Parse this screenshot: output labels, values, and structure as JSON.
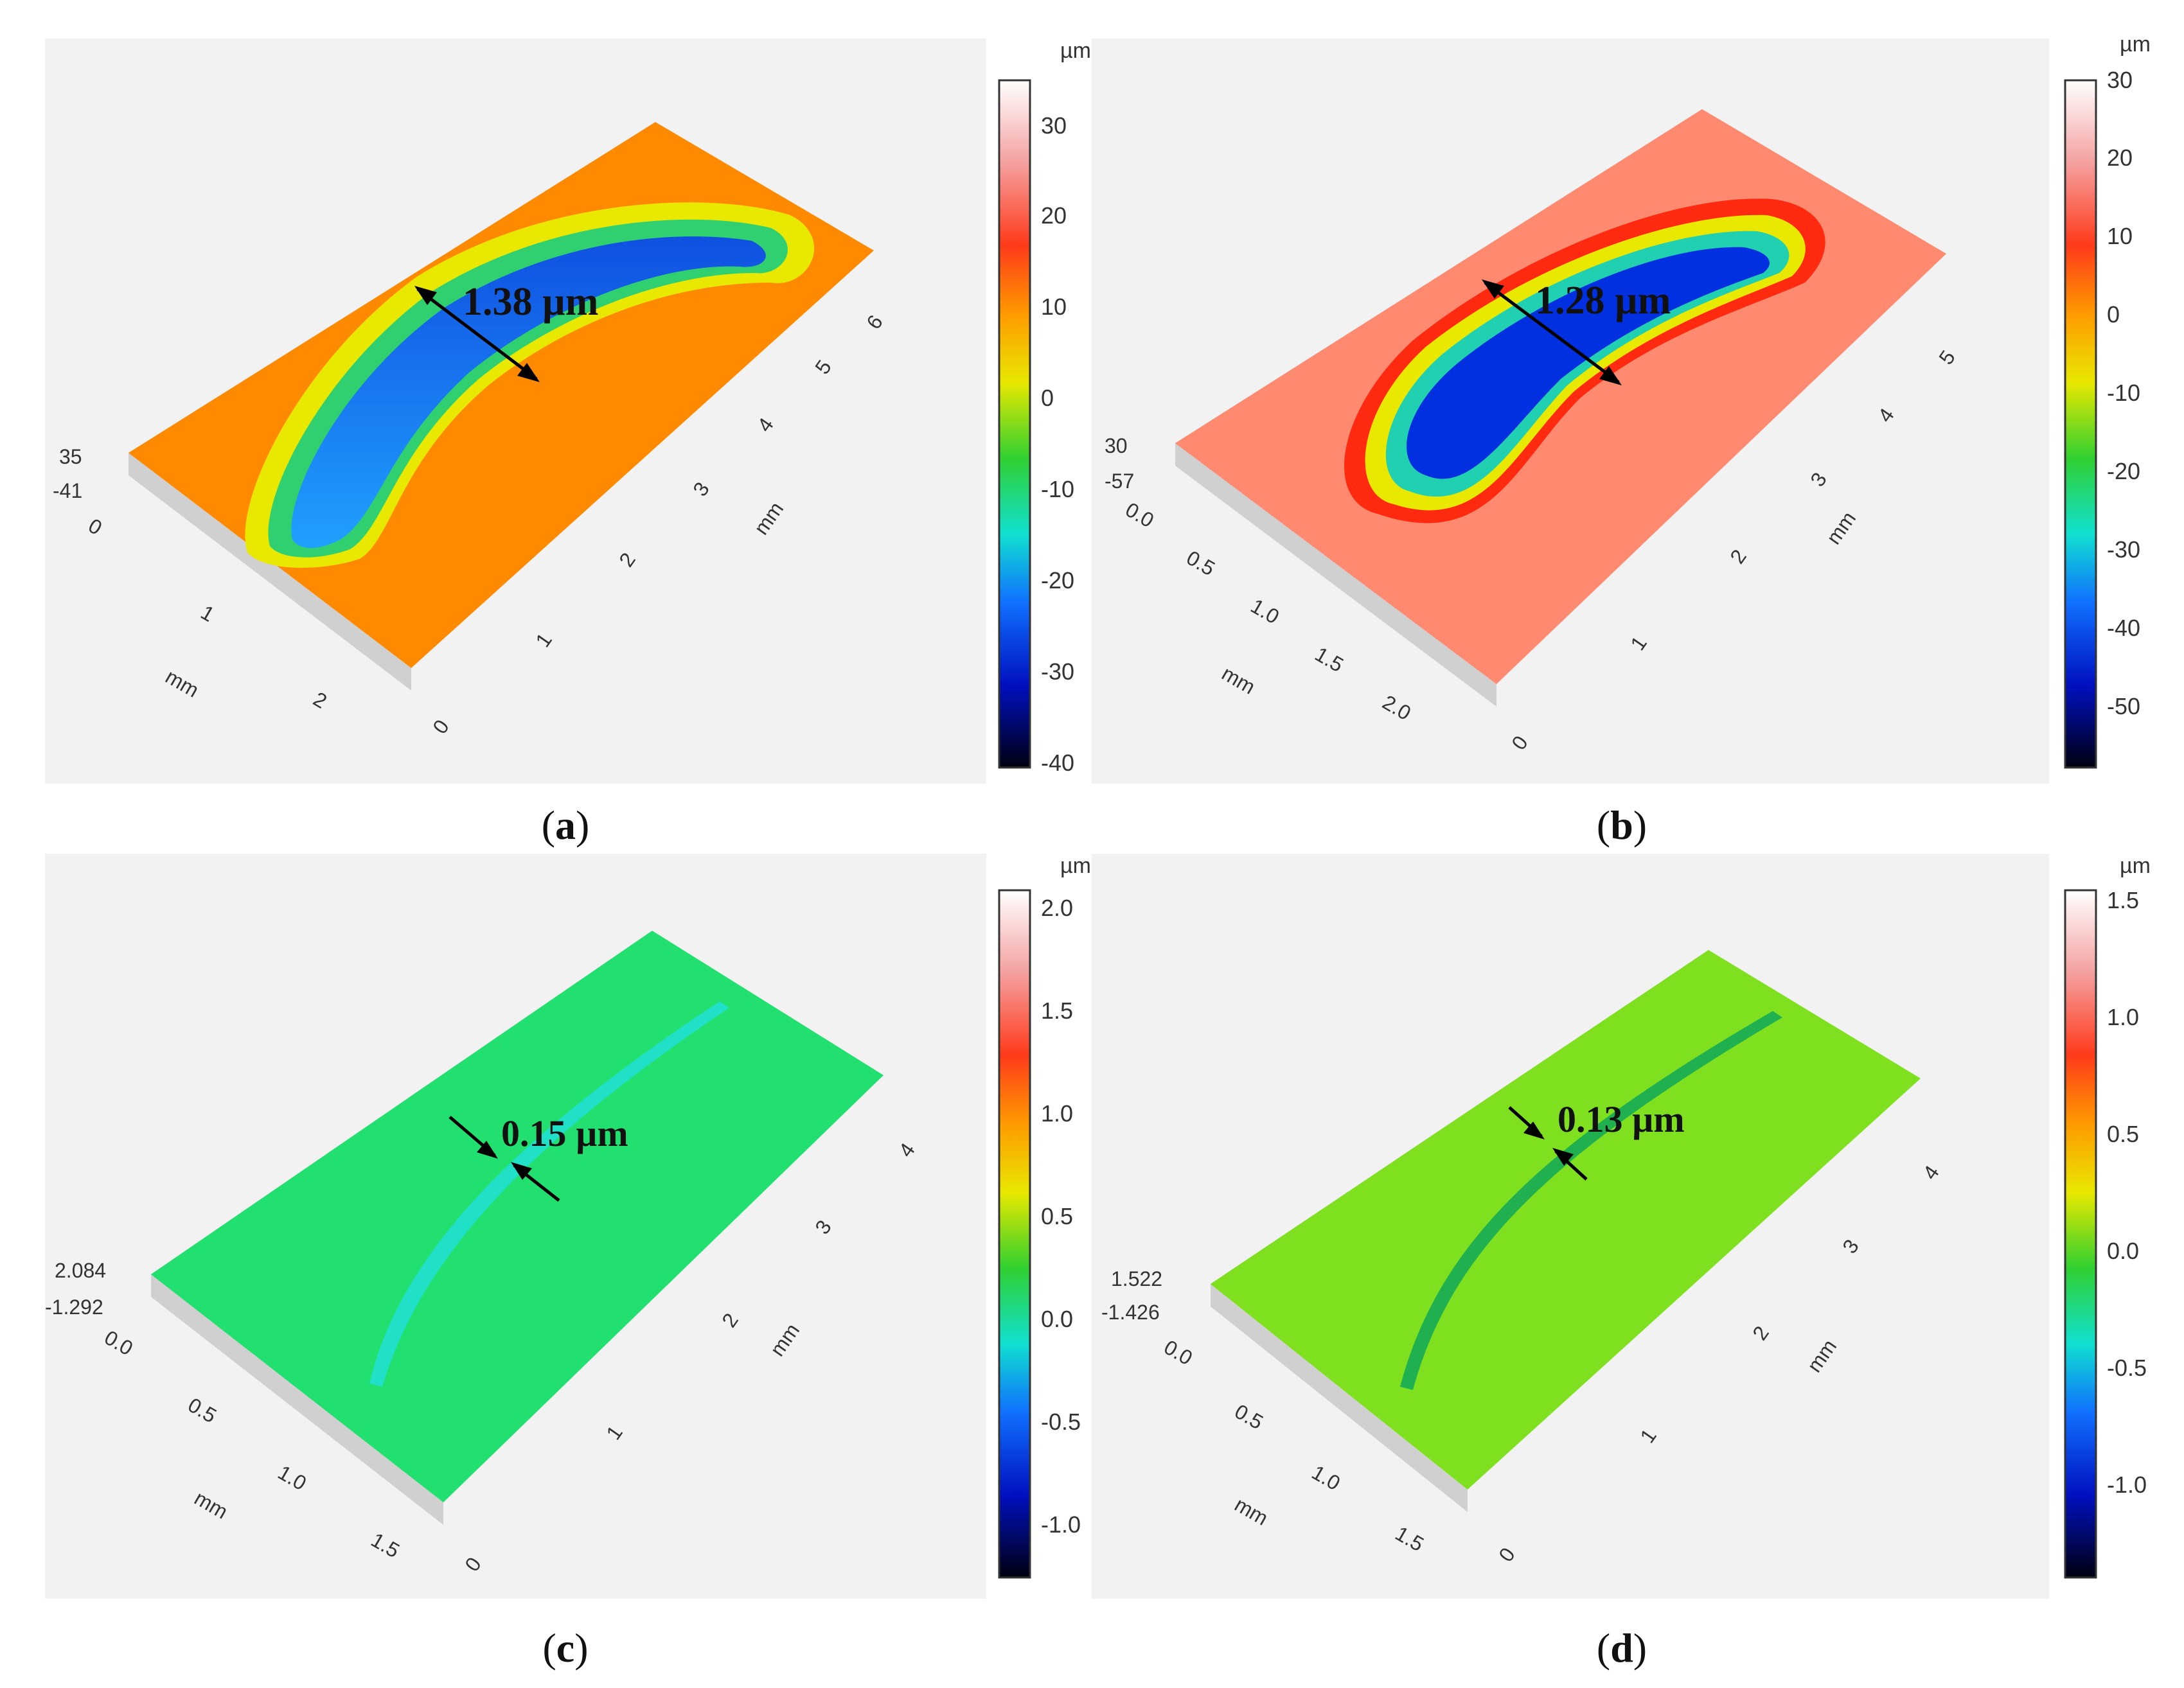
{
  "figure": {
    "panels": [
      {
        "id": "a",
        "caption_letter": "a",
        "unit": "µm",
        "colorbar_ticks": [
          "30",
          "20",
          "10",
          "0",
          "-10",
          "-20",
          "-30",
          "-40"
        ],
        "z_top": "35",
        "z_bottom": "-41",
        "x_axis_ticks": [
          "0",
          "1",
          "2"
        ],
        "y_axis_ticks": [
          "0",
          "1",
          "2",
          "3",
          "4",
          "5",
          "6"
        ],
        "x_axis_label": "mm",
        "y_axis_label": "mm",
        "annotation": "1.38 µm",
        "surface_color": "#ff8a00"
      },
      {
        "id": "b",
        "caption_letter": "b",
        "unit": "µm",
        "colorbar_ticks": [
          "30",
          "20",
          "10",
          "0",
          "-10",
          "-20",
          "-30",
          "-40",
          "-50"
        ],
        "z_top": "30",
        "z_bottom": "-57",
        "x_axis_ticks": [
          "0.0",
          "0.5",
          "1.0",
          "1.5",
          "2.0"
        ],
        "y_axis_ticks": [
          "0",
          "1",
          "2",
          "3",
          "4",
          "5"
        ],
        "x_axis_label": "mm",
        "y_axis_label": "mm",
        "annotation": "1.28 µm",
        "surface_color": "#ff8a70"
      },
      {
        "id": "c",
        "caption_letter": "c",
        "unit": "µm",
        "colorbar_ticks": [
          "2.0",
          "1.5",
          "1.0",
          "0.5",
          "0.0",
          "-0.5",
          "-1.0"
        ],
        "z_top": "2.084",
        "z_bottom": "-1.292",
        "x_axis_ticks": [
          "0.0",
          "0.5",
          "1.0",
          "1.5"
        ],
        "y_axis_ticks": [
          "0",
          "1",
          "2",
          "3",
          "4"
        ],
        "x_axis_label": "mm",
        "y_axis_label": "mm",
        "annotation": "0.15 µm",
        "surface_color": "#22e070"
      },
      {
        "id": "d",
        "caption_letter": "d",
        "unit": "µm",
        "colorbar_ticks": [
          "1.5",
          "1.0",
          "0.5",
          "0.0",
          "-0.5",
          "-1.0"
        ],
        "z_top": "1.522",
        "z_bottom": "-1.426",
        "x_axis_ticks": [
          "0.0",
          "0.5",
          "1.0",
          "1.5"
        ],
        "y_axis_ticks": [
          "0",
          "1",
          "2",
          "3",
          "4"
        ],
        "x_axis_label": "mm",
        "y_axis_label": "mm",
        "annotation": "0.13 µm",
        "surface_color": "#7fe020"
      }
    ]
  }
}
